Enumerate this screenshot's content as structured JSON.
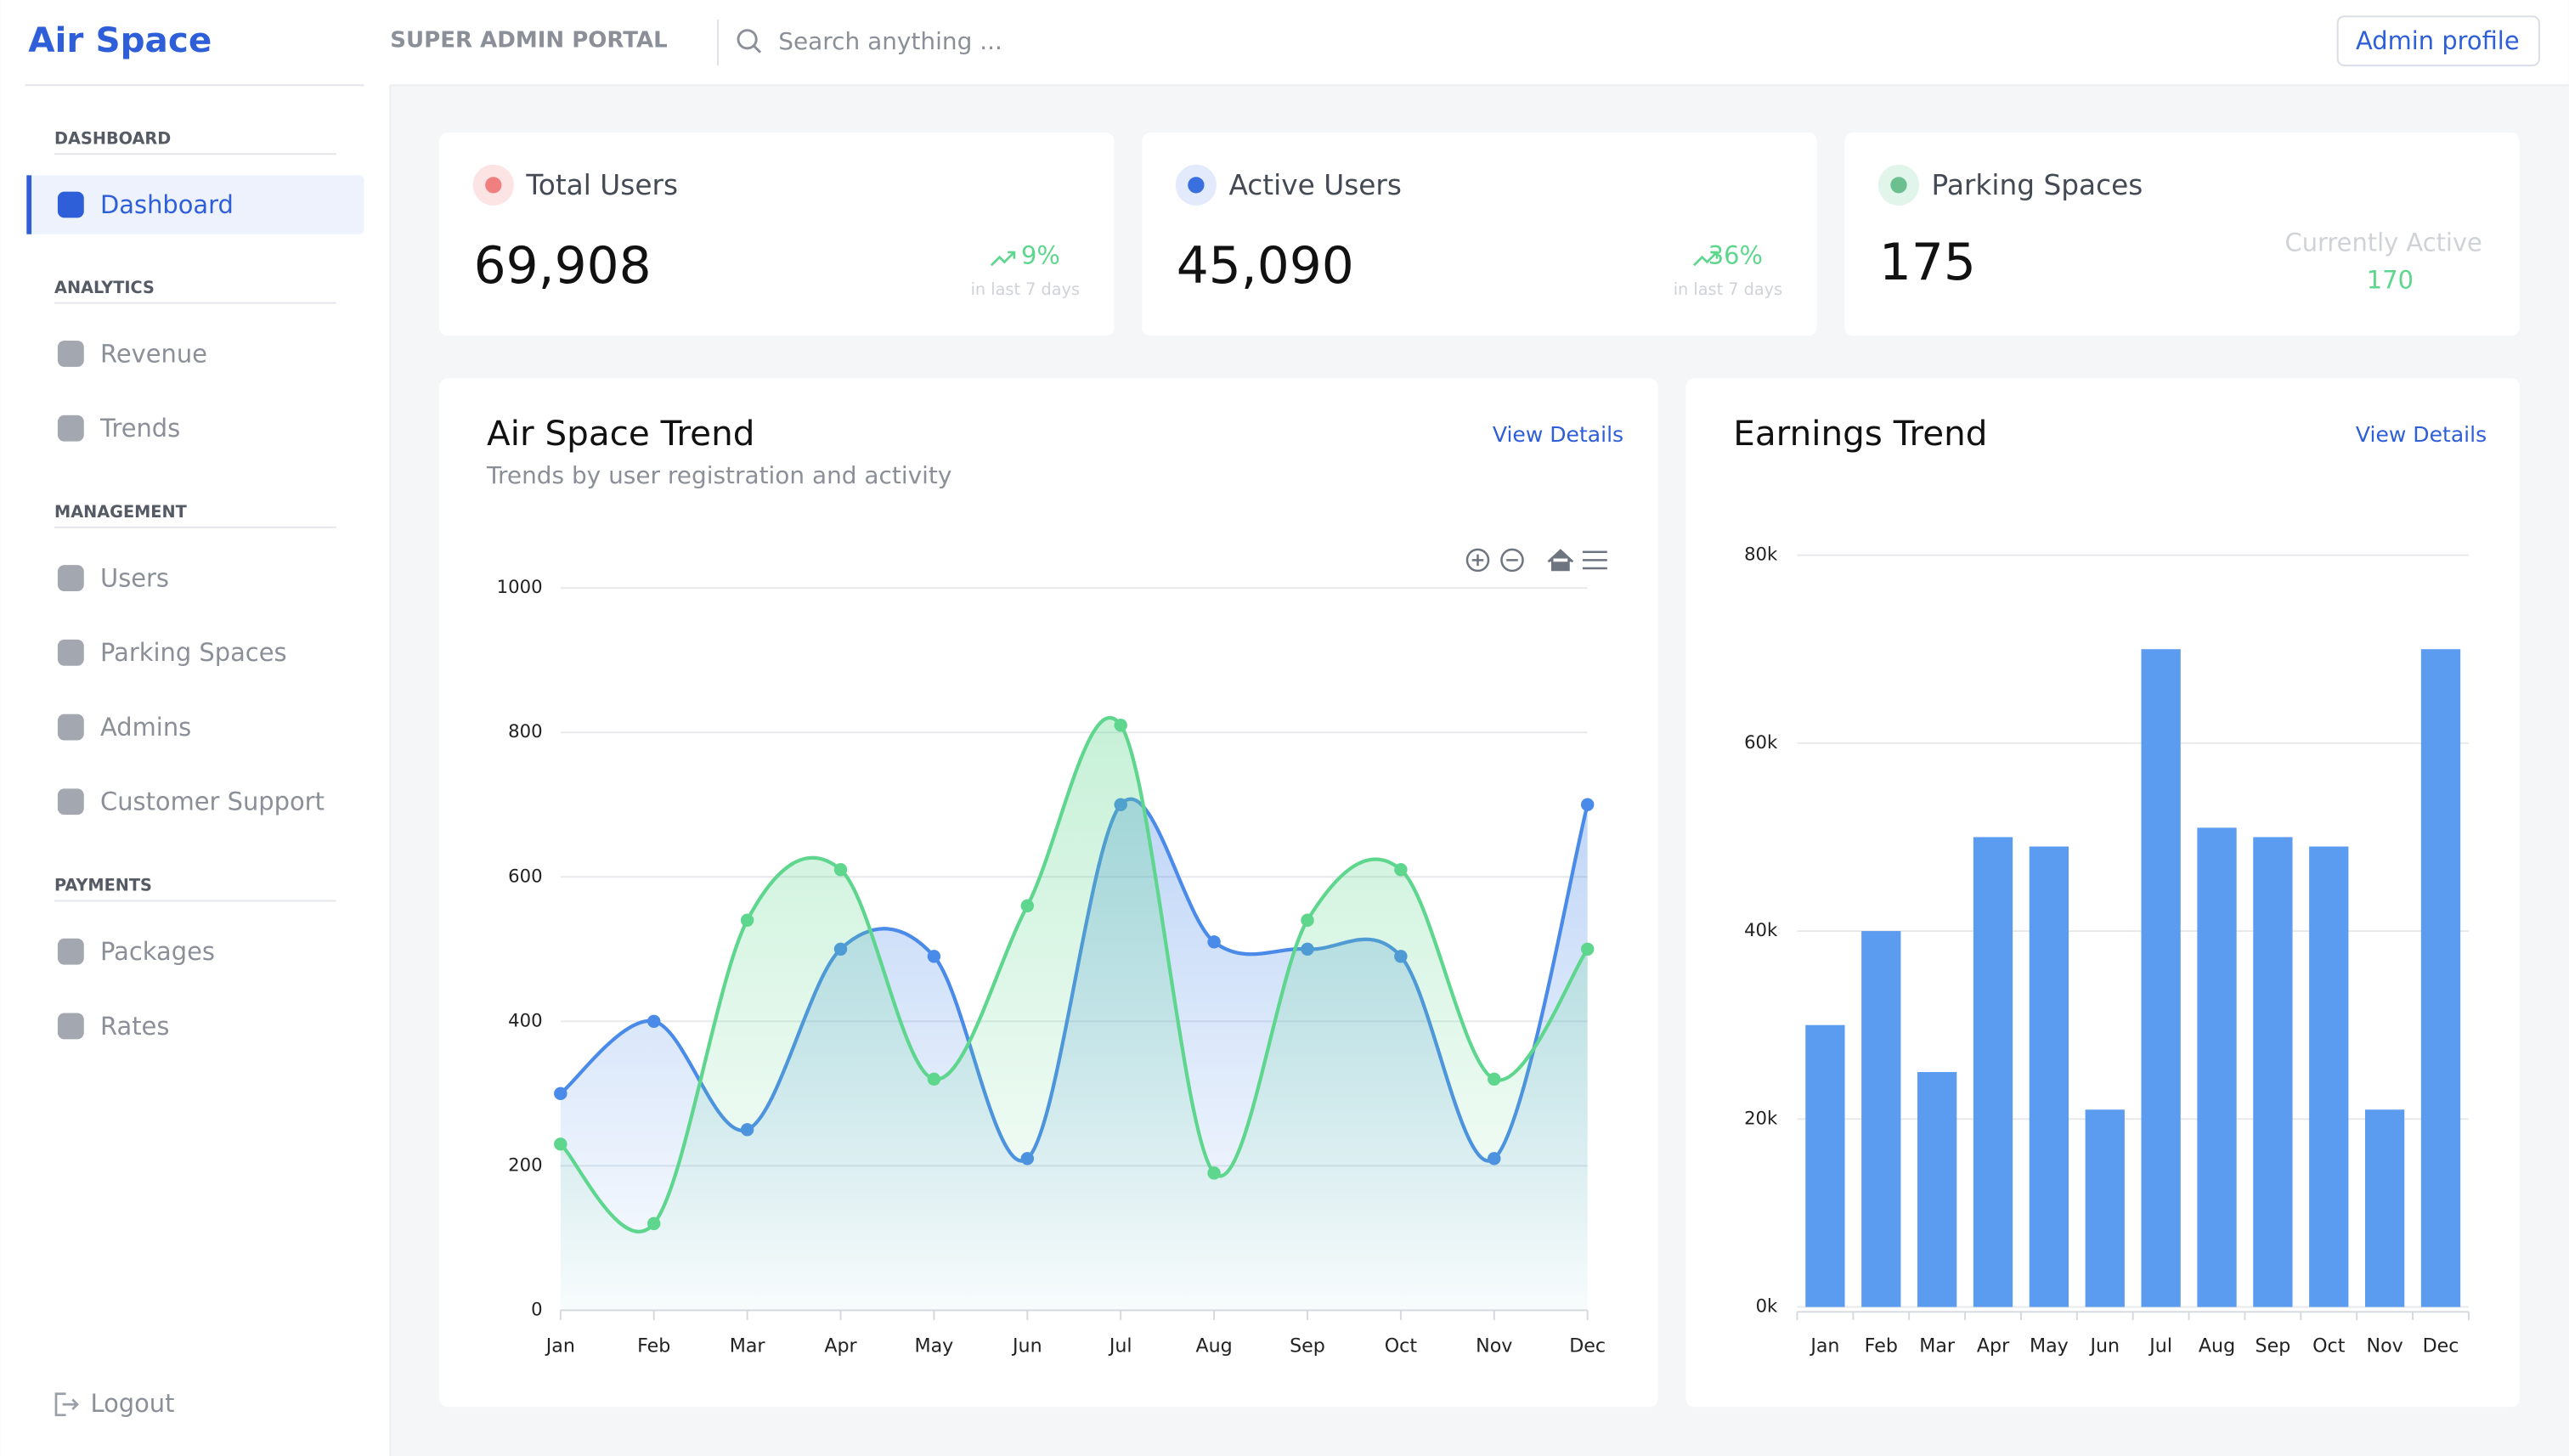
{
  "brand": "Air Space",
  "header": {
    "portal": "SUPER ADMIN PORTAL",
    "search_placeholder": "Search anything ...",
    "profile_button": "Admin profile"
  },
  "sidebar": {
    "sections": [
      {
        "title": "DASHBOARD",
        "items": [
          "Dashboard"
        ]
      },
      {
        "title": "ANALYTICS",
        "items": [
          "Revenue",
          "Trends"
        ]
      },
      {
        "title": "MANAGEMENT",
        "items": [
          "Users",
          "Parking Spaces",
          "Admins",
          "Customer Support"
        ]
      },
      {
        "title": "PAYMENTS",
        "items": [
          "Packages",
          "Rates"
        ]
      }
    ],
    "logout": "Logout"
  },
  "stats": [
    {
      "title": "Total Users",
      "value": "69,908",
      "change": "9%",
      "period": "in last 7 days"
    },
    {
      "title": "Active Users",
      "value": "45,090",
      "change": "36%",
      "period": "in last 7 days"
    },
    {
      "title": "Parking Spaces",
      "value": "175",
      "status_label": "Currently Active",
      "status_value": "170"
    }
  ],
  "panels": [
    {
      "link": "View Details"
    },
    {
      "link": "View Details"
    }
  ],
  "chart_data": [
    {
      "type": "line",
      "title": "Air Space Trend",
      "subtitle": "Trends by user registration and activity",
      "categories": [
        "Jan",
        "Feb",
        "Mar",
        "Apr",
        "May",
        "Jun",
        "Jul",
        "Aug",
        "Sep",
        "Oct",
        "Nov",
        "Dec"
      ],
      "series": [
        {
          "color": "#4a8ae8",
          "values": [
            300,
            400,
            250,
            500,
            490,
            210,
            700,
            510,
            500,
            490,
            210,
            700
          ]
        },
        {
          "color": "#5fd68e",
          "values": [
            230,
            120,
            540,
            610,
            320,
            560,
            810,
            190,
            540,
            610,
            320,
            500
          ]
        }
      ],
      "ylim": [
        0,
        1000
      ],
      "yticks": [
        0,
        200,
        400,
        600,
        800,
        1000
      ],
      "grid": true
    },
    {
      "type": "bar",
      "title": "Earnings Trend",
      "categories": [
        "Jan",
        "Feb",
        "Mar",
        "Apr",
        "May",
        "Jun",
        "Jul",
        "Aug",
        "Sep",
        "Oct",
        "Nov",
        "Dec"
      ],
      "values": [
        30000,
        40000,
        25000,
        50000,
        49000,
        21000,
        70000,
        51000,
        50000,
        49000,
        21000,
        70000
      ],
      "color": "#5b9bf0",
      "ylim": [
        0,
        80000
      ],
      "yticks": [
        {
          "value": 0,
          "label": "0k"
        },
        {
          "value": 20000,
          "label": "20k"
        },
        {
          "value": 40000,
          "label": "40k"
        },
        {
          "value": 60000,
          "label": "60k"
        },
        {
          "value": 80000,
          "label": "80k"
        }
      ],
      "grid": true
    }
  ]
}
